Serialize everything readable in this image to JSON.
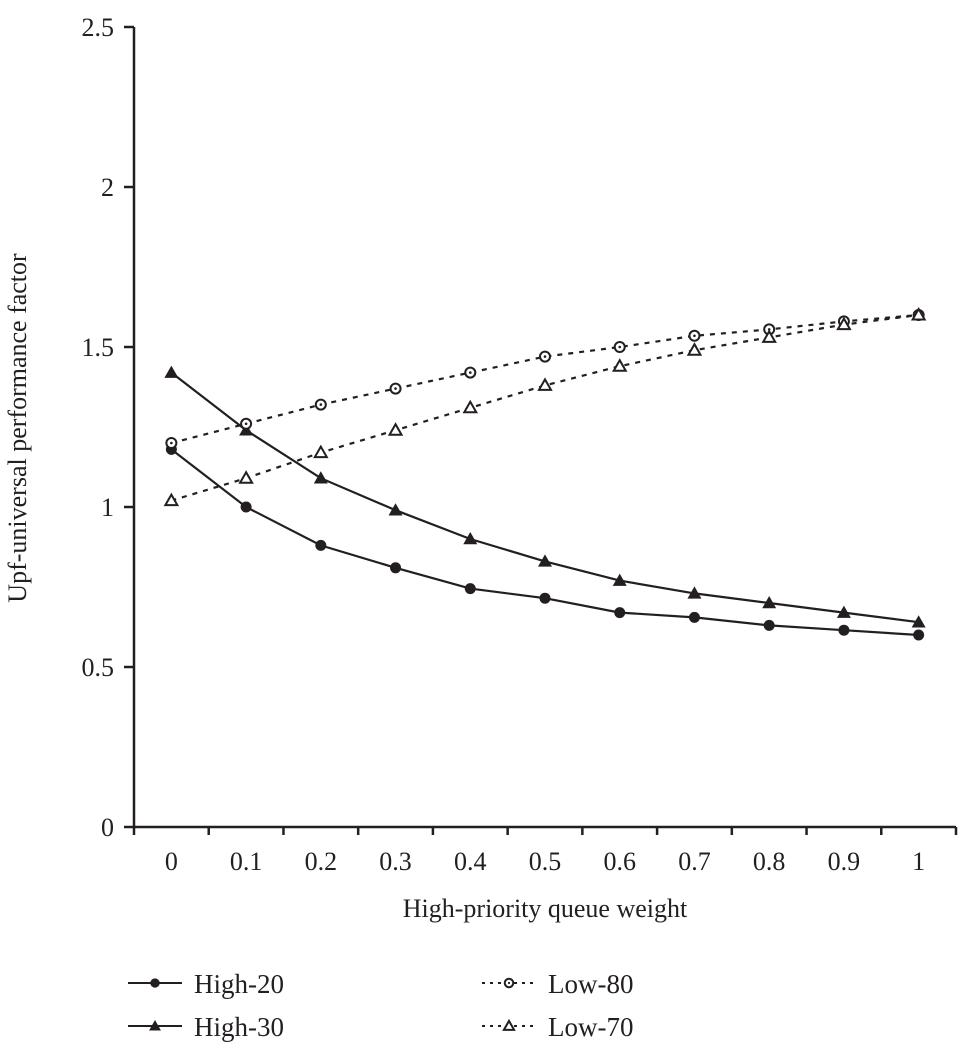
{
  "chart_data": {
    "type": "line",
    "title": "",
    "xlabel": "High-priority queue weight",
    "ylabel": "Upf-universal performance factor",
    "x": [
      "0",
      "0.1",
      "0.2",
      "0.3",
      "0.4",
      "0.5",
      "0.6",
      "0.7",
      "0.8",
      "0.9",
      "1"
    ],
    "ylim": [
      0,
      2.5
    ],
    "yticks": [
      "0",
      "0.5",
      "1",
      "1.5",
      "2",
      "2.5"
    ],
    "ytick_values": [
      0,
      0.5,
      1,
      1.5,
      2,
      2.5
    ],
    "grid": false,
    "legend_position": "bottom",
    "series": [
      {
        "name": "High-20",
        "line": "solid",
        "marker": "filled-circle",
        "values": [
          1.18,
          1.0,
          0.88,
          0.81,
          0.745,
          0.715,
          0.67,
          0.655,
          0.63,
          0.615,
          0.6
        ]
      },
      {
        "name": "High-30",
        "line": "solid",
        "marker": "filled-triangle",
        "values": [
          1.42,
          1.24,
          1.09,
          0.99,
          0.9,
          0.83,
          0.77,
          0.73,
          0.7,
          0.67,
          0.64
        ]
      },
      {
        "name": "Low-80",
        "line": "dashed",
        "marker": "open-circle",
        "values": [
          1.2,
          1.26,
          1.32,
          1.37,
          1.42,
          1.47,
          1.5,
          1.535,
          1.555,
          1.58,
          1.6
        ]
      },
      {
        "name": "Low-70",
        "line": "dashed",
        "marker": "open-triangle",
        "values": [
          1.02,
          1.09,
          1.17,
          1.24,
          1.31,
          1.38,
          1.44,
          1.49,
          1.53,
          1.57,
          1.6
        ]
      }
    ]
  },
  "colors": {
    "ink": "#231f20",
    "background": "#ffffff"
  }
}
